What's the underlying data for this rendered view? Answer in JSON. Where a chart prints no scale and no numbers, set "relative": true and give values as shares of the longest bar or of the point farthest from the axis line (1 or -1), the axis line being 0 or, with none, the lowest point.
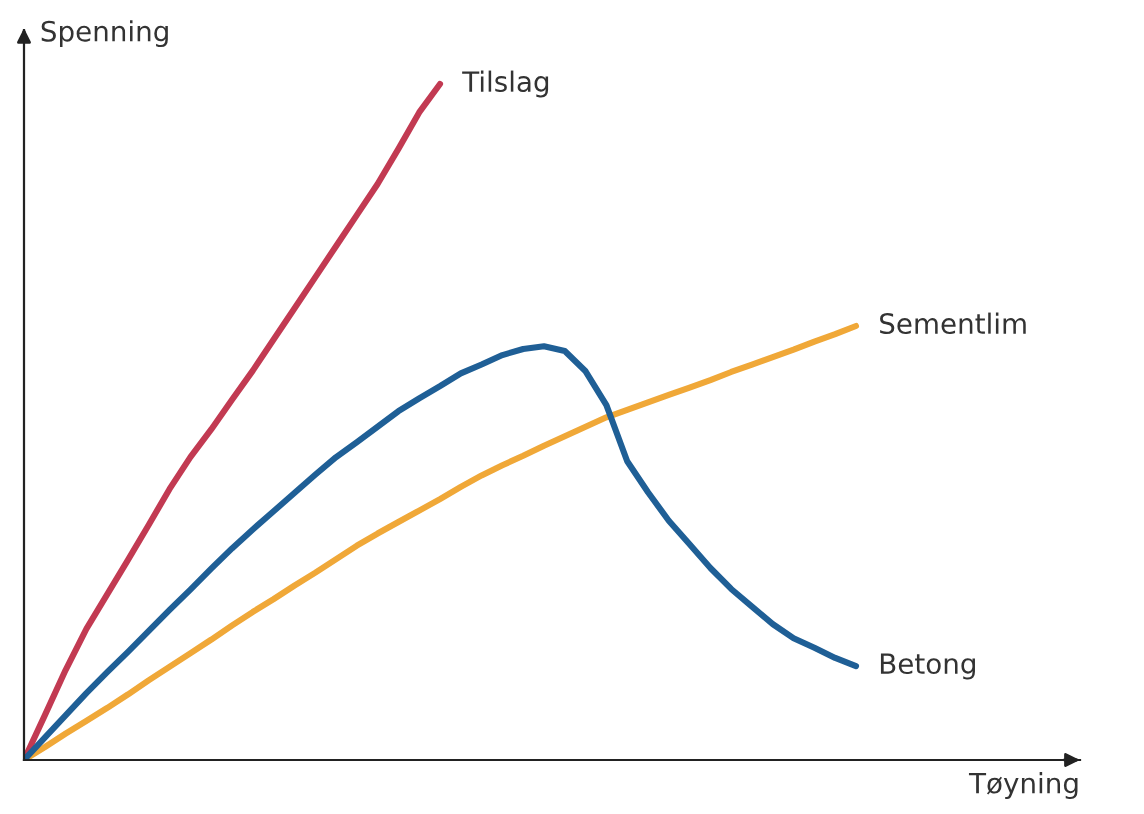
{
  "chart_data": {
    "type": "line",
    "relative": true,
    "xlabel": "Tøyning",
    "ylabel": "Spenning",
    "grid": false,
    "legend": false,
    "marker": "none",
    "line_style": "solid",
    "categories": [
      null,
      null,
      null,
      null,
      null,
      null,
      null,
      null,
      null,
      null,
      null,
      null,
      null,
      null,
      null,
      null,
      null,
      null,
      null,
      null,
      null,
      null,
      null,
      null,
      null,
      null,
      null,
      null,
      null,
      null,
      null,
      null,
      null,
      null,
      null,
      null,
      null,
      null,
      null,
      null,
      null
    ],
    "series": [
      {
        "name": "Tilslag",
        "color": "#c23a52",
        "values": [
          0,
          0.066,
          0.133,
          0.194,
          0.245,
          0.296,
          0.348,
          0.401,
          0.448,
          0.489,
          0.533,
          0.576,
          0.622,
          0.668,
          0.714,
          0.76,
          0.806,
          0.852,
          0.904,
          0.958,
          1.0,
          null,
          null,
          null,
          null,
          null,
          null,
          null,
          null,
          null,
          null,
          null,
          null,
          null,
          null,
          null,
          null,
          null,
          null,
          null,
          null
        ]
      },
      {
        "name": "Sementlim",
        "color": "#f0a838",
        "values": [
          0,
          0.019,
          0.039,
          0.058,
          0.077,
          0.097,
          0.118,
          0.138,
          0.158,
          0.178,
          0.199,
          0.219,
          0.238,
          0.258,
          0.277,
          0.297,
          0.317,
          0.335,
          0.352,
          0.369,
          0.386,
          0.404,
          0.421,
          0.436,
          0.45,
          0.465,
          0.479,
          0.493,
          0.507,
          0.518,
          0.529,
          0.54,
          0.551,
          0.562,
          0.574,
          0.585,
          0.596,
          0.607,
          0.619,
          0.63,
          0.642
        ]
      },
      {
        "name": "Betong",
        "color": "#1f5f96",
        "values": [
          0,
          0.033,
          0.066,
          0.099,
          0.13,
          0.16,
          0.191,
          0.222,
          0.252,
          0.283,
          0.313,
          0.341,
          0.368,
          0.395,
          0.422,
          0.448,
          0.47,
          0.493,
          0.516,
          0.535,
          0.553,
          0.572,
          0.585,
          0.599,
          0.608,
          0.612,
          0.605,
          0.575,
          0.525,
          0.442,
          0.396,
          0.354,
          0.319,
          0.284,
          0.253,
          0.227,
          0.201,
          0.18,
          0.166,
          0.151,
          0.139
        ]
      }
    ]
  }
}
